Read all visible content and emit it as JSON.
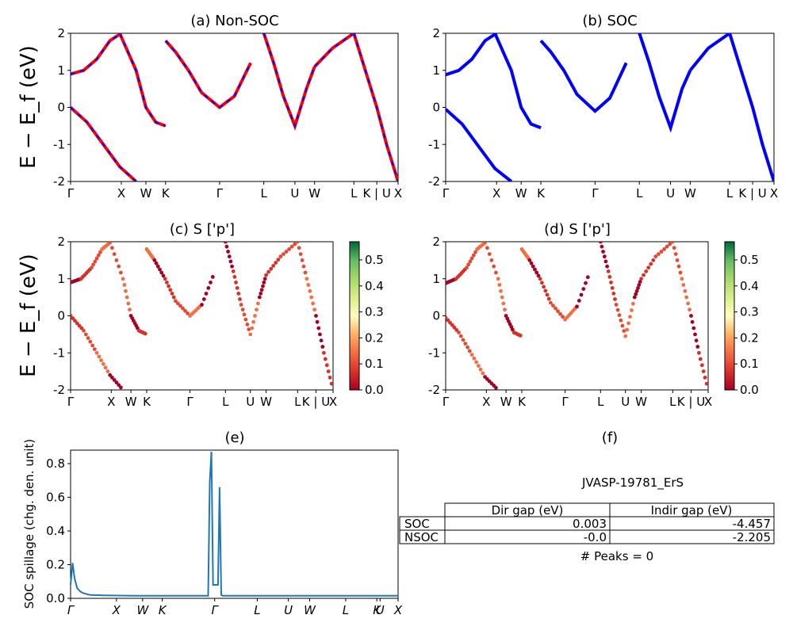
{
  "panels": {
    "a": {
      "title": "(a) Non-SOC"
    },
    "b": {
      "title": "(b) SOC"
    },
    "c": {
      "title": "(c)  S ['p']"
    },
    "d": {
      "title": "(d) S ['p']"
    },
    "e": {
      "title": "(e)"
    },
    "f": {
      "title": "(f)"
    }
  },
  "band_ylabel": "E − E_f (eV)",
  "kpath_labels": [
    "Γ",
    "X",
    "W",
    "K",
    "Γ",
    "L",
    "U",
    "W",
    "L",
    "K | U",
    "X"
  ],
  "kpath_positions": [
    0.0,
    0.155,
    0.23,
    0.29,
    0.455,
    0.59,
    0.685,
    0.745,
    0.865,
    0.935,
    1.0
  ],
  "colorbar_ticks": [
    "0.0",
    "0.1",
    "0.2",
    "0.3",
    "0.4",
    "0.5"
  ],
  "table": {
    "title": "JVASP-19781_ErS",
    "headers": [
      "Dir gap (eV)",
      "Indir gap (eV)"
    ],
    "rows": [
      {
        "label": "SOC",
        "dir": "0.003",
        "indir": "-4.457"
      },
      {
        "label": "NSOC",
        "dir": "-0.0",
        "indir": "-2.205"
      }
    ],
    "peaks": "# Peaks = 0"
  },
  "colors": {
    "nonsoc_line": "#ff0000",
    "nonsoc_dash": "#0000ff",
    "soc_line": "#0000ff",
    "spillage_line": "#1f77b4"
  },
  "chart_data": [
    {
      "type": "line",
      "id": "a",
      "title": "(a) Non-SOC",
      "ylabel": "E − E_f (eV)",
      "ylim": [
        -2,
        2
      ],
      "yticks": [
        -2,
        -1,
        0,
        1,
        2
      ],
      "x_tick_labels": [
        "Γ",
        "X",
        "W",
        "K",
        "Γ",
        "L",
        "U",
        "W",
        "L",
        "K | U",
        "X"
      ],
      "series": [
        {
          "x": [
            0.0,
            0.04,
            0.08,
            0.12,
            0.155
          ],
          "values": [
            0.9,
            1.0,
            1.3,
            1.8,
            2.0
          ]
        },
        {
          "x": [
            0.0,
            0.05,
            0.1,
            0.15,
            0.2
          ],
          "values": [
            0.0,
            -0.4,
            -1.0,
            -1.6,
            -2.0
          ]
        },
        {
          "x": [
            0.15,
            0.2,
            0.23,
            0.26,
            0.29
          ],
          "values": [
            2.0,
            1.0,
            0.0,
            -0.4,
            -0.5
          ]
        },
        {
          "x": [
            0.29,
            0.32,
            0.36,
            0.4,
            0.455,
            0.5,
            0.55
          ],
          "values": [
            1.8,
            1.5,
            1.0,
            0.4,
            0.0,
            0.3,
            1.2
          ]
        },
        {
          "x": [
            0.59,
            0.62,
            0.65,
            0.685,
            0.72,
            0.745
          ],
          "values": [
            2.0,
            1.2,
            0.3,
            -0.5,
            0.5,
            1.1
          ]
        },
        {
          "x": [
            0.745,
            0.8,
            0.865
          ],
          "values": [
            1.1,
            1.6,
            2.0
          ]
        },
        {
          "x": [
            0.865,
            0.9,
            0.935,
            0.965,
            1.0
          ],
          "values": [
            2.0,
            1.0,
            0.0,
            -1.0,
            -2.0
          ]
        }
      ]
    },
    {
      "type": "line",
      "id": "b",
      "title": "(b) SOC",
      "ylabel": "",
      "ylim": [
        -2,
        2
      ],
      "yticks": [
        -2,
        -1,
        0,
        1,
        2
      ],
      "x_tick_labels": [
        "Γ",
        "X",
        "W",
        "K",
        "Γ",
        "L",
        "U",
        "W",
        "L",
        "K | U",
        "X"
      ],
      "series": [
        {
          "x": [
            0.0,
            0.04,
            0.08,
            0.12,
            0.155
          ],
          "values": [
            0.88,
            1.0,
            1.3,
            1.8,
            2.0
          ]
        },
        {
          "x": [
            0.0,
            0.05,
            0.1,
            0.15,
            0.2
          ],
          "values": [
            -0.05,
            -0.45,
            -1.05,
            -1.65,
            -2.0
          ]
        },
        {
          "x": [
            0.15,
            0.2,
            0.23,
            0.26,
            0.29
          ],
          "values": [
            2.0,
            1.0,
            0.0,
            -0.45,
            -0.55
          ]
        },
        {
          "x": [
            0.29,
            0.32,
            0.36,
            0.4,
            0.455,
            0.5,
            0.55
          ],
          "values": [
            1.8,
            1.5,
            1.0,
            0.35,
            -0.1,
            0.25,
            1.2
          ]
        },
        {
          "x": [
            0.59,
            0.62,
            0.65,
            0.685,
            0.72,
            0.745
          ],
          "values": [
            2.0,
            1.2,
            0.3,
            -0.55,
            0.5,
            1.0
          ]
        },
        {
          "x": [
            0.745,
            0.8,
            0.865
          ],
          "values": [
            1.0,
            1.6,
            2.0
          ]
        },
        {
          "x": [
            0.865,
            0.9,
            0.935,
            0.965,
            1.0
          ],
          "values": [
            2.0,
            1.0,
            0.0,
            -1.0,
            -2.0
          ]
        }
      ]
    },
    {
      "type": "scatter",
      "id": "c",
      "title": "(c)  S ['p']",
      "ylabel": "E − E_f (eV)",
      "ylim": [
        -2,
        2
      ],
      "colorbar_range": [
        0.0,
        0.57
      ],
      "x_tick_labels": [
        "Γ",
        "X",
        "W",
        "K",
        "Γ",
        "L",
        "U",
        "W",
        "L",
        "K | U",
        "X"
      ]
    },
    {
      "type": "scatter",
      "id": "d",
      "title": "(d) S ['p']",
      "ylabel": "",
      "ylim": [
        -2,
        2
      ],
      "colorbar_range": [
        0.0,
        0.57
      ],
      "x_tick_labels": [
        "Γ",
        "X",
        "W",
        "K",
        "Γ",
        "L",
        "U",
        "W",
        "L",
        "K | U",
        "X"
      ]
    },
    {
      "type": "line",
      "id": "e",
      "title": "(e)",
      "ylabel": "SOC spillage (chg. den. unit)",
      "ylim": [
        0,
        0.88
      ],
      "yticks": [
        0.0,
        0.2,
        0.4,
        0.6,
        0.8
      ],
      "x_tick_labels": [
        "Γ",
        "X",
        "W",
        "K",
        "Γ",
        "L",
        "U",
        "W",
        "L",
        "K",
        "U",
        "X"
      ],
      "series": [
        {
          "name": "",
          "x": [
            0.0,
            0.006,
            0.012,
            0.02,
            0.03,
            0.04,
            0.06,
            0.1,
            0.2,
            0.3,
            0.4,
            0.42,
            0.425,
            0.43,
            0.435,
            0.445,
            0.45,
            0.455,
            0.46,
            0.465,
            0.5,
            0.6,
            0.7,
            0.8,
            0.9,
            1.0
          ],
          "values": [
            0.08,
            0.21,
            0.12,
            0.06,
            0.04,
            0.03,
            0.02,
            0.018,
            0.015,
            0.015,
            0.015,
            0.015,
            0.69,
            0.87,
            0.08,
            0.08,
            0.08,
            0.66,
            0.02,
            0.015,
            0.015,
            0.015,
            0.015,
            0.015,
            0.015,
            0.015
          ]
        }
      ]
    }
  ]
}
